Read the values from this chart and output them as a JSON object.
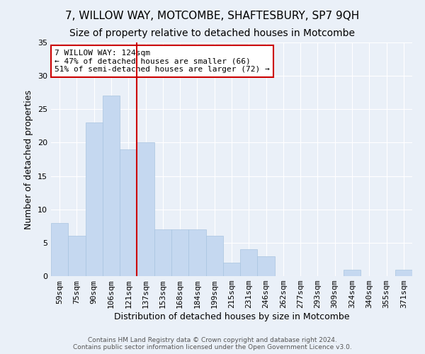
{
  "title": "7, WILLOW WAY, MOTCOMBE, SHAFTESBURY, SP7 9QH",
  "subtitle": "Size of property relative to detached houses in Motcombe",
  "xlabel": "Distribution of detached houses by size in Motcombe",
  "ylabel": "Number of detached properties",
  "categories": [
    "59sqm",
    "75sqm",
    "90sqm",
    "106sqm",
    "121sqm",
    "137sqm",
    "153sqm",
    "168sqm",
    "184sqm",
    "199sqm",
    "215sqm",
    "231sqm",
    "246sqm",
    "262sqm",
    "277sqm",
    "293sqm",
    "309sqm",
    "324sqm",
    "340sqm",
    "355sqm",
    "371sqm"
  ],
  "values": [
    8,
    6,
    23,
    27,
    19,
    20,
    7,
    7,
    7,
    6,
    2,
    4,
    3,
    0,
    0,
    0,
    0,
    1,
    0,
    0,
    1
  ],
  "bar_color": "#c5d8f0",
  "bar_edge_color": "#a8c4e0",
  "vline_x_index": 4.5,
  "vline_color": "#cc0000",
  "annotation_line1": "7 WILLOW WAY: 124sqm",
  "annotation_line2": "← 47% of detached houses are smaller (66)",
  "annotation_line3": "51% of semi-detached houses are larger (72) →",
  "annotation_box_color": "white",
  "annotation_box_edge": "#cc0000",
  "ylim": [
    0,
    35
  ],
  "yticks": [
    0,
    5,
    10,
    15,
    20,
    25,
    30,
    35
  ],
  "footer1": "Contains HM Land Registry data © Crown copyright and database right 2024.",
  "footer2": "Contains public sector information licensed under the Open Government Licence v3.0.",
  "bg_color": "#eaf0f8",
  "plot_bg_color": "#eaf0f8",
  "title_fontsize": 11,
  "subtitle_fontsize": 10,
  "ylabel_fontsize": 9,
  "xlabel_fontsize": 9,
  "tick_fontsize": 8,
  "annotation_fontsize": 8,
  "footer_fontsize": 6.5
}
